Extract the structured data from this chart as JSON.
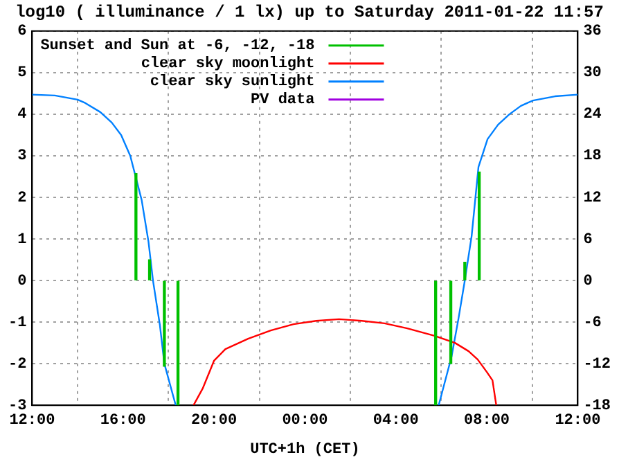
{
  "chart_data": {
    "type": "line",
    "title": "log10 ( illuminance / 1 lx) up to Saturday 2011-01-22 11:57",
    "xlabel": "UTC+1h (CET)",
    "xlim": [
      "2011-01-21T12:00",
      "2011-01-22T12:00"
    ],
    "xticks": [
      {
        "value": "2011-01-21T12:00",
        "label": "12:00"
      },
      {
        "value": "2011-01-21T16:00",
        "label": "16:00"
      },
      {
        "value": "2011-01-21T20:00",
        "label": "20:00"
      },
      {
        "value": "2011-01-22T00:00",
        "label": "00:00"
      },
      {
        "value": "2011-01-22T04:00",
        "label": "04:00"
      },
      {
        "value": "2011-01-22T08:00",
        "label": "08:00"
      },
      {
        "value": "2011-01-22T12:00",
        "label": "12:00"
      }
    ],
    "ylim": [
      -3,
      6
    ],
    "yticks": [
      -3,
      -2,
      -1,
      0,
      1,
      2,
      3,
      4,
      5,
      6
    ],
    "y2lim": [
      -18,
      36
    ],
    "y2ticks": [
      -18,
      -12,
      -6,
      0,
      6,
      12,
      18,
      24,
      30,
      36
    ],
    "grid": true,
    "legend": "top left",
    "marker": "none",
    "series": [
      {
        "name": "Sunset and Sun at -6, -12, -18",
        "type": "bar",
        "color": "#00c000",
        "x": [
          "2011-01-21T16:34",
          "2011-01-21T17:10",
          "2011-01-21T17:49",
          "2011-01-21T18:25",
          "2011-01-22T05:45",
          "2011-01-22T06:25",
          "2011-01-22T07:02",
          "2011-01-22T07:40"
        ],
        "values": [
          2.57,
          0.5,
          -2.06,
          -3,
          -3,
          -2,
          0.44,
          2.61
        ]
      },
      {
        "name": "clear sky moonlight",
        "color": "#ff0000",
        "x": [
          "2011-01-21T19:06",
          "2011-01-21T19:30",
          "2011-01-21T20:00",
          "2011-01-21T20:30",
          "2011-01-21T21:30",
          "2011-01-21T22:30",
          "2011-01-21T23:30",
          "2011-01-22T00:30",
          "2011-01-22T01:30",
          "2011-01-22T02:30",
          "2011-01-22T03:30",
          "2011-01-22T04:30",
          "2011-01-22T05:42",
          "2011-01-22T06:36",
          "2011-01-22T07:12",
          "2011-01-22T07:36",
          "2011-01-22T08:00",
          "2011-01-22T08:15",
          "2011-01-22T08:25"
        ],
        "values": [
          -3,
          -2.6,
          -1.93,
          -1.65,
          -1.4,
          -1.2,
          -1.05,
          -0.97,
          -0.93,
          -0.97,
          -1.03,
          -1.15,
          -1.33,
          -1.5,
          -1.7,
          -1.9,
          -2.2,
          -2.4,
          -3
        ]
      },
      {
        "name": "clear sky sunlight",
        "color": "#0080ff",
        "x": [
          "2011-01-21T12:00",
          "2011-01-21T13:00",
          "2011-01-21T14:00",
          "2011-01-21T14:20",
          "2011-01-21T15:00",
          "2011-01-21T15:30",
          "2011-01-21T15:55",
          "2011-01-21T16:19",
          "2011-01-21T16:49",
          "2011-01-21T17:07",
          "2011-01-21T17:19",
          "2011-01-21T17:37",
          "2011-01-21T17:49",
          "2011-01-21T18:19",
          "2011-01-22T00:00",
          "2011-01-22T05:53",
          "2011-01-22T06:27",
          "2011-01-22T06:45",
          "2011-01-22T07:02",
          "2011-01-22T07:20",
          "2011-01-22T07:38",
          "2011-01-22T08:02",
          "2011-01-22T08:30",
          "2011-01-22T09:00",
          "2011-01-22T09:30",
          "2011-01-22T10:02",
          "2011-01-22T11:00",
          "2011-01-22T12:00"
        ],
        "values": [
          4.47,
          4.45,
          4.35,
          4.27,
          4.05,
          3.8,
          3.5,
          3.0,
          1.94,
          0.94,
          0,
          -1.06,
          -2,
          -3,
          null,
          -3,
          -1.83,
          -0.93,
          0,
          1.07,
          2.73,
          3.4,
          3.75,
          4.0,
          4.2,
          4.33,
          4.43,
          4.47
        ]
      },
      {
        "name": "PV data",
        "color": "#a000e0"
      }
    ]
  }
}
